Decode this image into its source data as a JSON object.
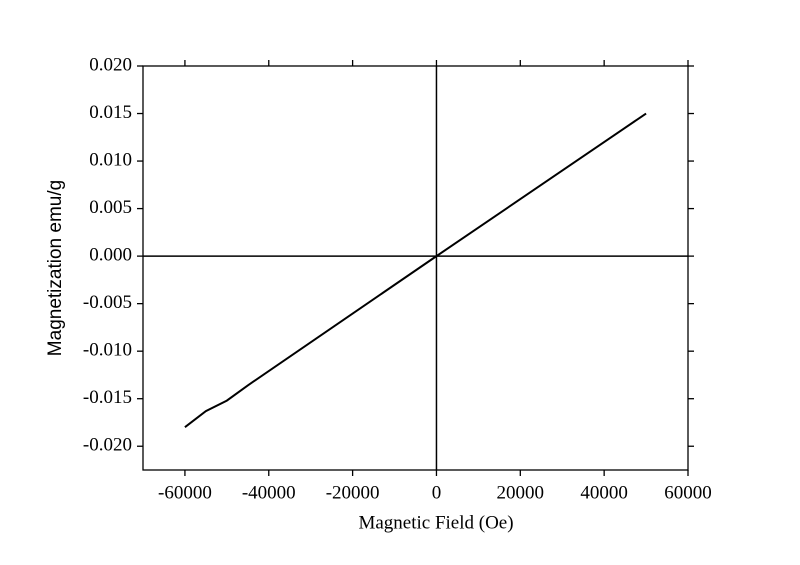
{
  "chart_data": {
    "type": "line",
    "x_label": "Magnetic Field (Oe)",
    "y_label": "Magnetization emu/g",
    "x": [
      -60000,
      -55000,
      -50000,
      -45000,
      0,
      50000
    ],
    "series": [
      {
        "color": "#000000",
        "values": [
          -0.018,
          -0.0163,
          -0.0152,
          -0.0136,
          0,
          0.015
        ]
      }
    ],
    "xlim": [
      -70000,
      60000
    ],
    "ylim": [
      -0.0225,
      0.02
    ],
    "xticks": [
      -60000,
      -40000,
      -20000,
      0,
      20000,
      40000,
      60000
    ],
    "yticks": [
      {
        "value": 0.02,
        "label": "0.020"
      },
      {
        "value": 0.015,
        "label": "0.015"
      },
      {
        "value": 0.01,
        "label": "0.010"
      },
      {
        "value": 0.005,
        "label": "0.005"
      },
      {
        "value": 0,
        "label": "0.000"
      },
      {
        "value": -0.005,
        "label": "-0.005"
      },
      {
        "value": -0.01,
        "label": "-0.010"
      },
      {
        "value": -0.015,
        "label": "-0.015"
      },
      {
        "value": -0.02,
        "label": "-0.020"
      }
    ],
    "zero_lines": true
  }
}
